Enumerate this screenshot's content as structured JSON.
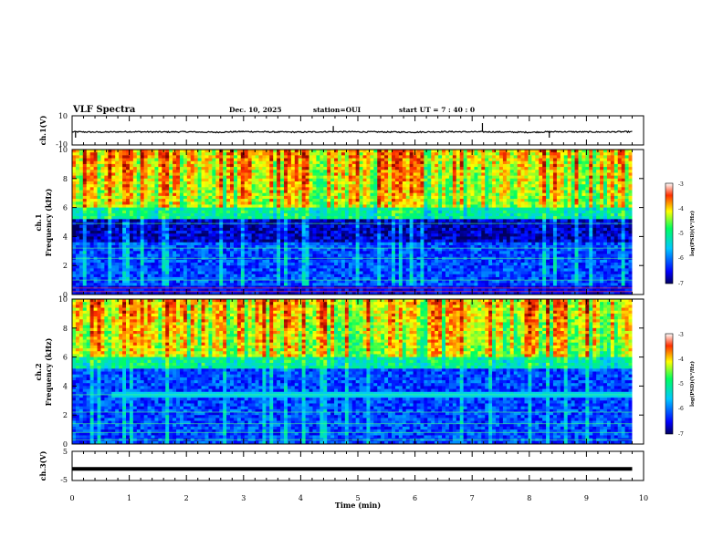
{
  "header": {
    "title": "VLF Spectra",
    "date": "Dec. 10, 2025",
    "station": "station=OUI",
    "start_ut": "start  UT =   7 : 40 : 0"
  },
  "chart_data": [
    {
      "type": "line",
      "name": "ch1-waveform",
      "ylabel": "ch.1(V)",
      "ylim": [
        -10,
        10
      ],
      "y_ticks": [
        "10",
        "-10"
      ],
      "baseline": -1,
      "x": [
        0,
        0.5,
        1,
        1.5,
        2,
        2.5,
        3,
        3.5,
        4,
        4.5,
        5,
        5.5,
        6,
        6.5,
        7,
        7.5,
        8,
        8.5,
        9,
        9.5,
        9.8
      ],
      "values": [
        -1,
        -1.2,
        -0.9,
        -1.1,
        -1,
        -1.3,
        -0.8,
        -1.1,
        -1.2,
        -0.9,
        -1,
        -1.1,
        -1.2,
        -0.9,
        -1,
        -1.1,
        -1.3,
        -0.9,
        -1.1,
        -1,
        -1
      ],
      "spikes_min": [
        0.06,
        4.57,
        7.18,
        8.35
      ],
      "spike_values": [
        -5,
        3,
        5,
        -5
      ]
    },
    {
      "type": "heatmap",
      "name": "ch1-spectrogram",
      "ylabel": "Frequency (kHz)",
      "channel_label": "ch.1",
      "ylim": [
        0,
        10
      ],
      "y_ticks": [
        "0",
        "2",
        "4",
        "6",
        "8",
        "10"
      ],
      "noise_band_khz": [
        3.5,
        5.2
      ],
      "colorbar": {
        "label": "log(PSD)(V²/Hz)",
        "range": [
          -7,
          -3
        ],
        "ticks": [
          "-3",
          "-4",
          "-5",
          "-6",
          "-7"
        ]
      }
    },
    {
      "type": "heatmap",
      "name": "ch2-spectrogram",
      "ylabel": "Frequency (kHz)",
      "channel_label": "ch.2",
      "ylim": [
        0,
        10
      ],
      "y_ticks": [
        "0",
        "2",
        "4",
        "6",
        "8",
        "10"
      ],
      "line_khz": 3.4,
      "colorbar": {
        "label": "log(PSD)(V²/Hz)",
        "range": [
          -7,
          -3
        ],
        "ticks": [
          "-3",
          "-4",
          "-5",
          "-6",
          "-7"
        ]
      }
    },
    {
      "type": "line",
      "name": "ch3-waveform",
      "ylabel": "ch.3(V)",
      "ylim": [
        -5,
        5
      ],
      "y_ticks": [
        "5",
        "-5"
      ],
      "baseline": -1,
      "x": [
        0,
        9.8
      ],
      "values": [
        -1,
        -1
      ]
    }
  ],
  "x_axis": {
    "label": "Time (min)",
    "range": [
      0,
      10
    ],
    "ticks": [
      "0",
      "1",
      "2",
      "3",
      "4",
      "5",
      "6",
      "7",
      "8",
      "9",
      "10"
    ],
    "data_end_min": 9.8
  },
  "colors": {
    "frame": "#000000",
    "trace": "#000000",
    "background": "#ffffff"
  }
}
